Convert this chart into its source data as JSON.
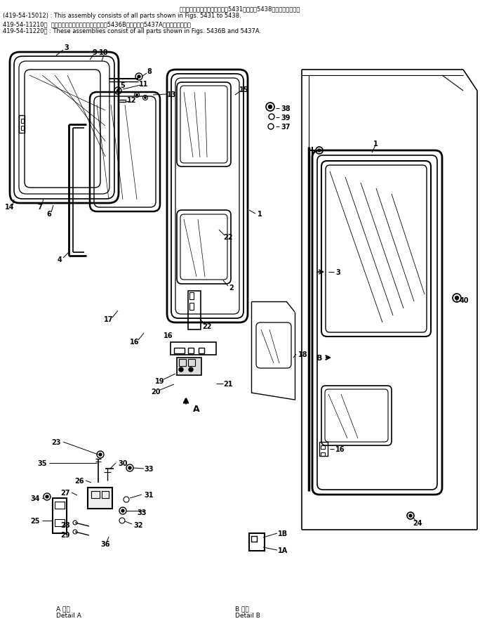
{
  "bg_color": "#ffffff",
  "figsize": [
    6.84,
    9.12
  ],
  "dpi": 100,
  "header": [
    [
      "center",
      342,
      8,
      "このアセンブリの構成部品は囵5431図から囵5438図まで含みます．",
      6.0
    ],
    [
      "left",
      4,
      18,
      "(419-54-15012) : This assembly consists of all parts shown in Figs. 5431 to 5438.",
      6.0
    ],
    [
      "left",
      4,
      30,
      "419-54-11210）  これらのアセンブリの構成部品は囵5436B図および囵5437A図まで含みます．",
      6.0
    ],
    [
      "left",
      4,
      40,
      "419-54-11220） : These assemblies consist of all parts shown in Figs. 5436B and 5437A.",
      6.0
    ]
  ],
  "footer": [
    [
      "left",
      80,
      862,
      "A 詳細",
      6.5
    ],
    [
      "left",
      80,
      872,
      "Detail A",
      6.5
    ],
    [
      "left",
      335,
      862,
      "B 詳細",
      6.5
    ],
    [
      "left",
      335,
      872,
      "Detail B",
      6.5
    ]
  ]
}
